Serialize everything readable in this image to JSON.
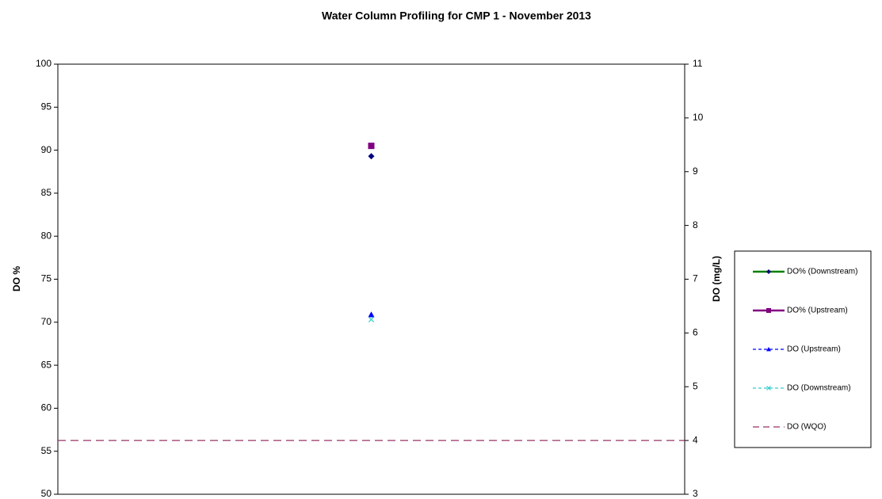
{
  "chart_data": {
    "type": "scatter",
    "title": "Water Column Profiling for CMP 1 - November 2013",
    "ylabel": "DO %",
    "y2label": "DO (mg/L)",
    "categories": [
      null
    ],
    "ylim": [
      50,
      100
    ],
    "yticks": [
      50,
      55,
      60,
      65,
      70,
      75,
      80,
      85,
      90,
      95,
      100
    ],
    "y2lim": [
      3,
      11
    ],
    "y2ticks": [
      3,
      4,
      5,
      6,
      7,
      8,
      9,
      10,
      11
    ],
    "legend": "right",
    "series": [
      {
        "name": "DO% (Downstream)",
        "color": "#008000",
        "marker_color": "#000080",
        "marker": "diamond",
        "values": [
          89.3
        ]
      },
      {
        "name": "DO% (Upstream)",
        "color": "#800080",
        "marker_color": "#800080",
        "marker": "square",
        "values": [
          90.5
        ]
      },
      {
        "name": "DO (Upstream)",
        "color": "#0000ff",
        "marker_color": "#0000ff",
        "marker": "triangle",
        "dash": true,
        "axis": "y2",
        "values": [
          6.34
        ]
      },
      {
        "name": "DO (Downstream)",
        "color": "#33cccc",
        "marker_color": "#33cccc",
        "marker": "x",
        "dash": true,
        "axis": "y2",
        "values": [
          6.25
        ]
      }
    ],
    "reference_lines": [
      {
        "name": "DO (WQO)",
        "value": 4,
        "axis": "y2",
        "color": "#993366",
        "dash": true
      }
    ]
  }
}
